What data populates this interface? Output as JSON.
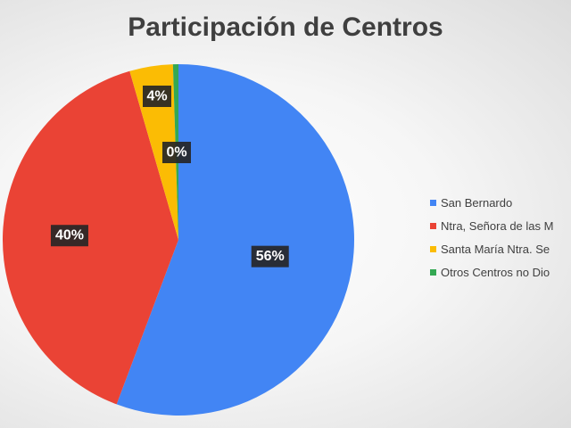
{
  "chart_data": {
    "type": "pie",
    "title": "Participación de Centros",
    "categories": [
      "San Bernardo",
      "Ntra, Señora de las M",
      "Santa María Ntra. Se",
      "Otros Centros no Dio"
    ],
    "values": [
      56,
      40,
      4,
      0.5
    ],
    "data_labels": [
      "56%",
      "40%",
      "4%",
      "0%"
    ],
    "colors": [
      "#4285F4",
      "#EA4335",
      "#FBBC04",
      "#34A853"
    ],
    "start_angle_deg": 0,
    "direction": "clockwise",
    "legend_position": "right"
  }
}
